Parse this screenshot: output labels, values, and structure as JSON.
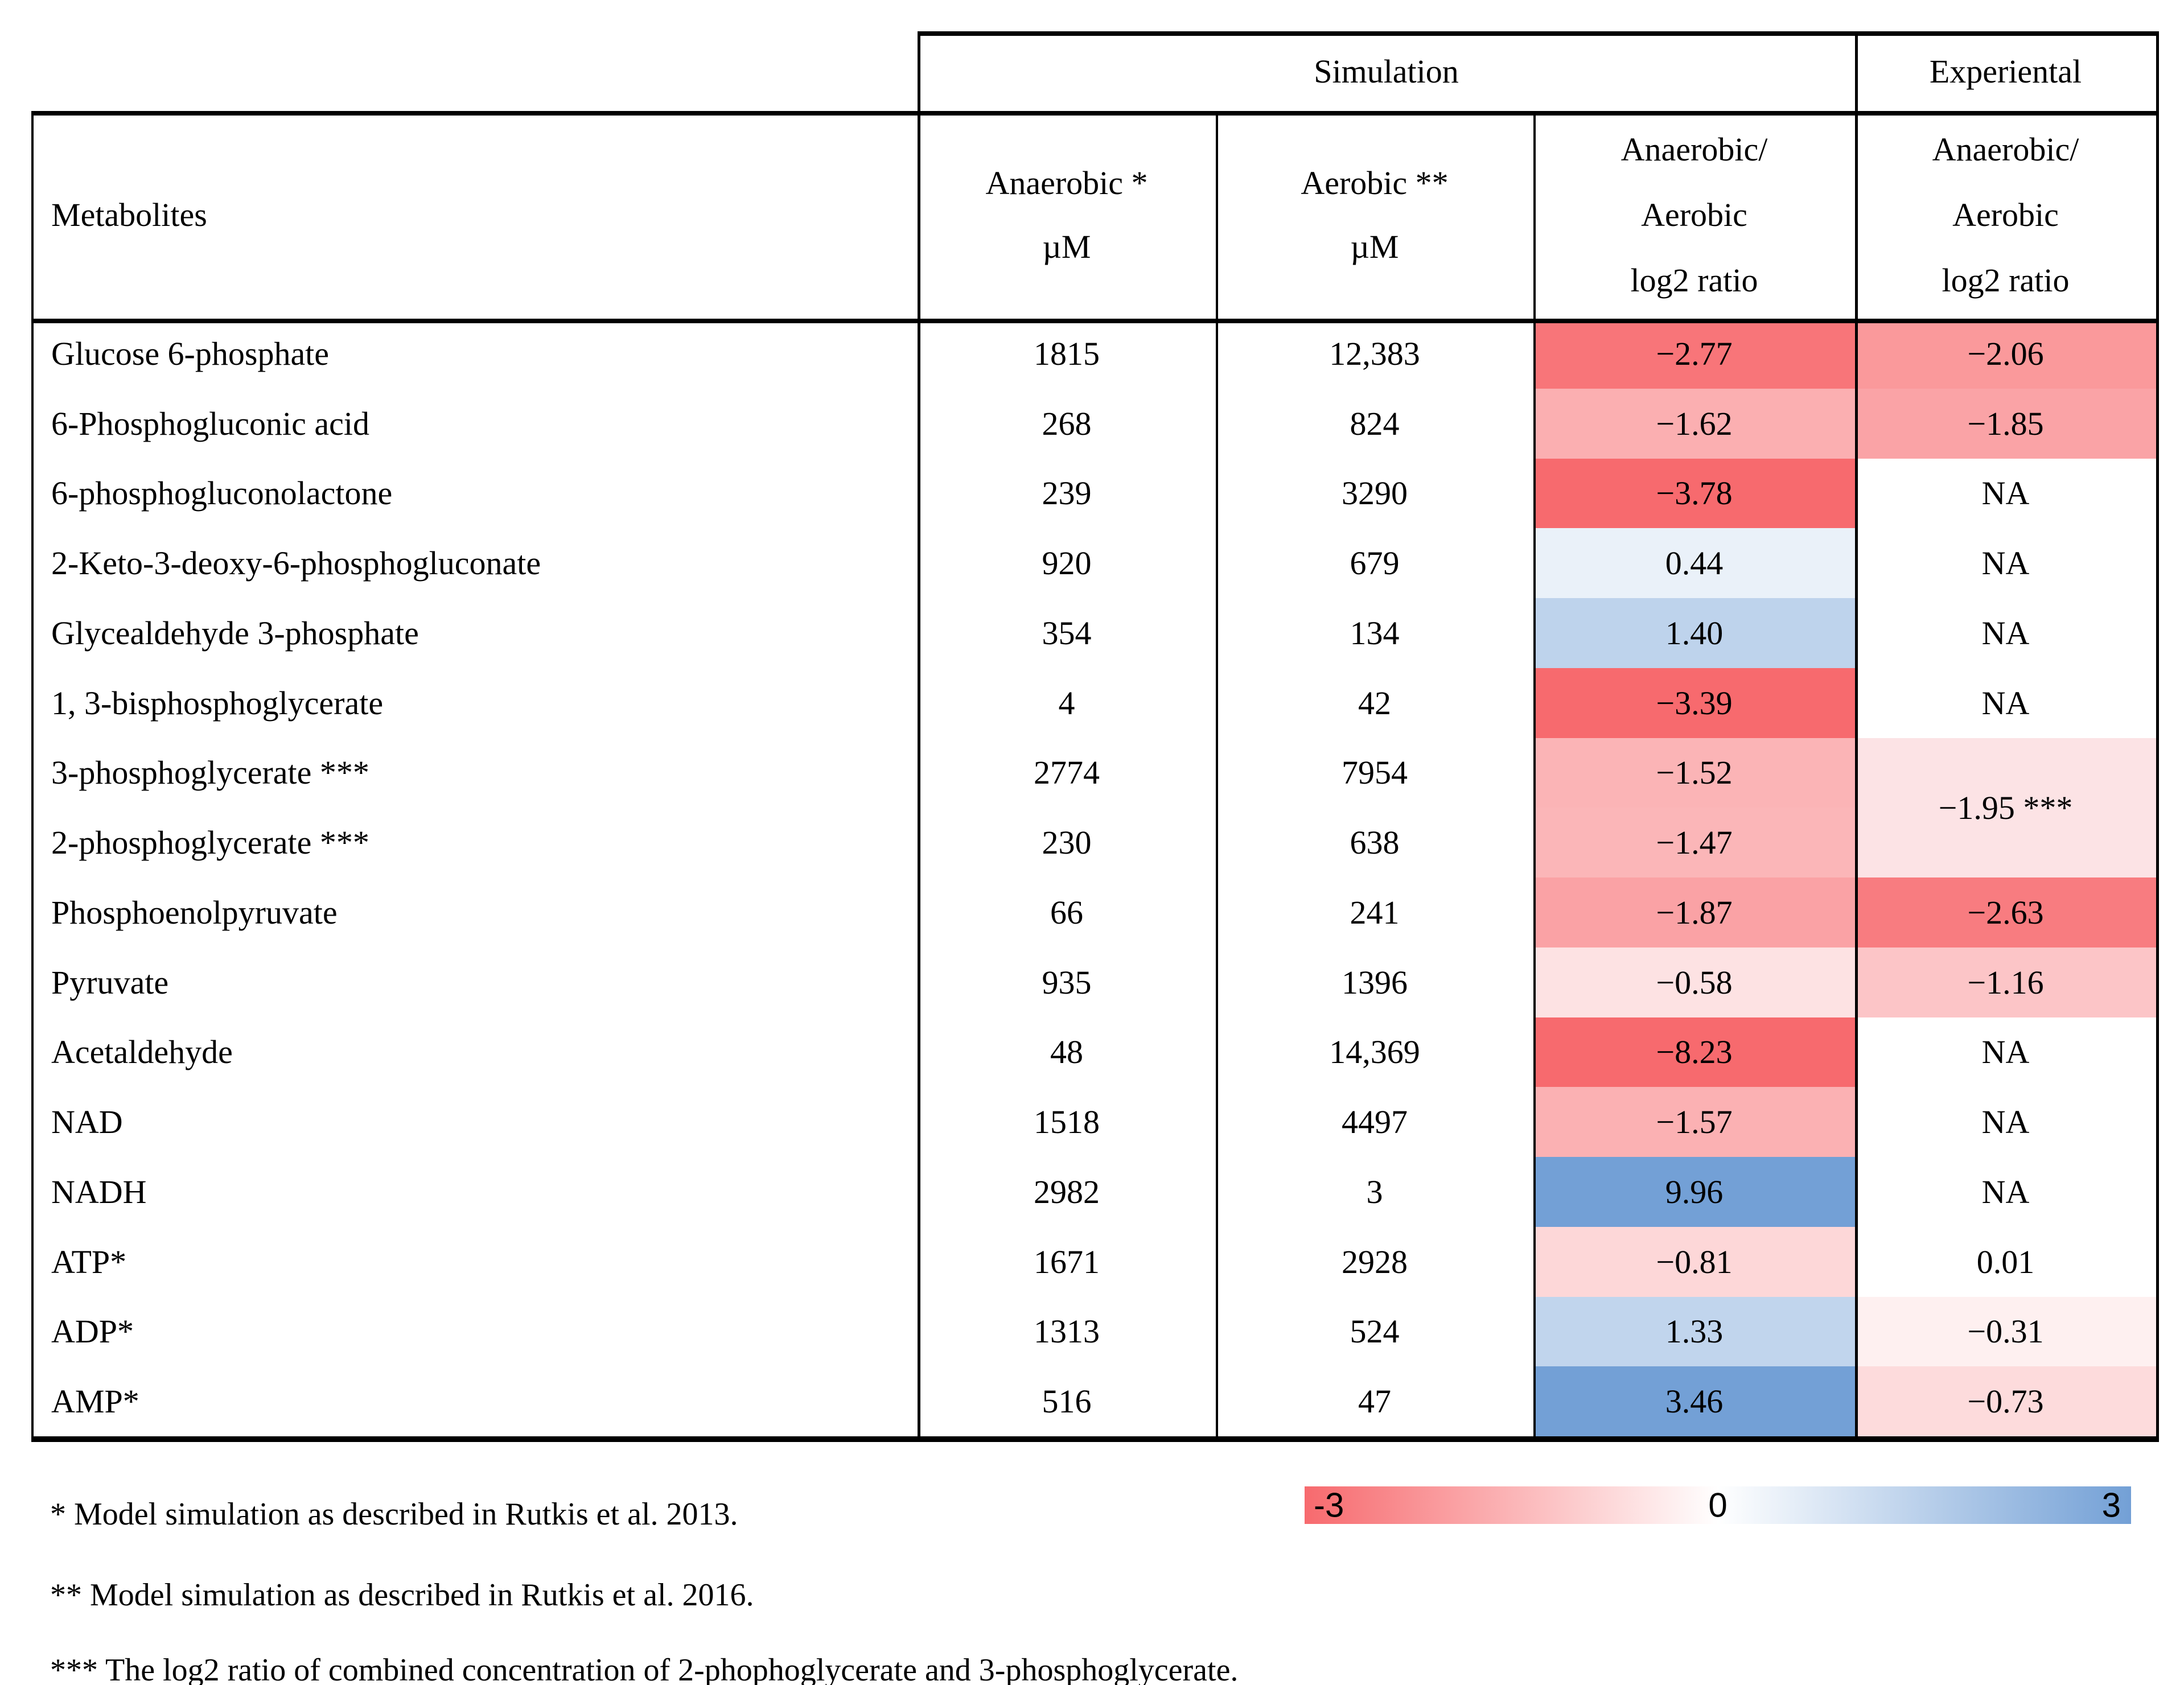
{
  "table": {
    "simulation_label": "Simulation",
    "experimental_label": "Experiental",
    "metabolites_label": "Metabolites",
    "anaerobic_header": [
      "Anaerobic *",
      "µM"
    ],
    "aerobic_header": [
      "Aerobic **",
      "µM"
    ],
    "ratio_header": [
      "Anaerobic/",
      "Aerobic",
      "log2 ratio"
    ]
  },
  "chart_data": {
    "type": "heatmap",
    "title": "Simulated and experimental metabolite concentrations, anaerobic vs aerobic",
    "columns": [
      "Metabolites",
      "Anaerobic * µM (Simulation)",
      "Aerobic ** µM (Simulation)",
      "Anaerobic/Aerobic log2 ratio (Simulation)",
      "Anaerobic/Aerobic log2 ratio (Experiental)"
    ],
    "rows": [
      {
        "name": "Glucose 6-phosphate",
        "anaerobic": "1815",
        "aerobic": "12,383",
        "sim_label": "−2.77",
        "sim_value": -2.77,
        "exp_label": "−2.06",
        "exp_value": -2.06
      },
      {
        "name": "6-Phosphogluconic acid",
        "anaerobic": "268",
        "aerobic": "824",
        "sim_label": "−1.62",
        "sim_value": -1.62,
        "exp_label": "−1.85",
        "exp_value": -1.85
      },
      {
        "name": "6-phosphogluconolactone",
        "anaerobic": "239",
        "aerobic": "3290",
        "sim_label": "−3.78",
        "sim_value": -3.78,
        "exp_label": "NA",
        "exp_value": null
      },
      {
        "name": "2-Keto-3-deoxy-6-phosphogluconate",
        "anaerobic": "920",
        "aerobic": "679",
        "sim_label": "0.44",
        "sim_value": 0.44,
        "exp_label": "NA",
        "exp_value": null
      },
      {
        "name": "Glycealdehyde 3-phosphate",
        "anaerobic": "354",
        "aerobic": "134",
        "sim_label": "1.40",
        "sim_value": 1.4,
        "exp_label": "NA",
        "exp_value": null
      },
      {
        "name": "1, 3-bisphosphoglycerate",
        "anaerobic": "4",
        "aerobic": "42",
        "sim_label": "−3.39",
        "sim_value": -3.39,
        "exp_label": "NA",
        "exp_value": null
      },
      {
        "name": "3-phosphoglycerate ***",
        "anaerobic": "2774",
        "aerobic": "7954",
        "sim_label": "−1.52",
        "sim_value": -1.52,
        "exp_label": "",
        "exp_value": null,
        "exp_merged": true
      },
      {
        "name": "2-phosphoglycerate ***",
        "anaerobic": "230",
        "aerobic": "638",
        "sim_label": "−1.47",
        "sim_value": -1.47,
        "exp_label": "",
        "exp_value": null,
        "exp_merged": true
      },
      {
        "name": "Phosphoenolpyruvate",
        "anaerobic": "66",
        "aerobic": "241",
        "sim_label": "−1.87",
        "sim_value": -1.87,
        "exp_label": "−2.63",
        "exp_value": -2.63
      },
      {
        "name": "Pyruvate",
        "anaerobic": "935",
        "aerobic": "1396",
        "sim_label": "−0.58",
        "sim_value": -0.58,
        "exp_label": "−1.16",
        "exp_value": -1.16
      },
      {
        "name": "Acetaldehyde",
        "anaerobic": "48",
        "aerobic": "14,369",
        "sim_label": "−8.23",
        "sim_value": -8.23,
        "exp_label": "NA",
        "exp_value": null
      },
      {
        "name": "NAD",
        "anaerobic": "1518",
        "aerobic": "4497",
        "sim_label": "−1.57",
        "sim_value": -1.57,
        "exp_label": "NA",
        "exp_value": null
      },
      {
        "name": "NADH",
        "anaerobic": "2982",
        "aerobic": "3",
        "sim_label": "9.96",
        "sim_value": 9.96,
        "exp_label": "NA",
        "exp_value": null
      },
      {
        "name": "ATP*",
        "anaerobic": "1671",
        "aerobic": "2928",
        "sim_label": "−0.81",
        "sim_value": -0.81,
        "exp_label": "0.01",
        "exp_value": 0.01
      },
      {
        "name": "ADP*",
        "anaerobic": "1313",
        "aerobic": "524",
        "sim_label": "1.33",
        "sim_value": 1.33,
        "exp_label": "−0.31",
        "exp_value": -0.31
      },
      {
        "name": "AMP*",
        "anaerobic": "516",
        "aerobic": "47",
        "sim_label": "3.46",
        "sim_value": 3.46,
        "exp_label": "−0.73",
        "exp_value": -0.73
      }
    ],
    "merged_experimental_cell": {
      "row_start": 6,
      "row_end": 7,
      "label": "−1.95 ***",
      "value": -1.95,
      "color": "#FCE3E5"
    },
    "colorscale": {
      "min": -3,
      "mid": 0,
      "max": 3,
      "min_color": "#F76A6E",
      "mid_color": "#FFFFFF",
      "max_color": "#73A0D6"
    }
  },
  "legend": {
    "min_label": "-3",
    "zero_label": "0",
    "max_label": "3"
  },
  "footnotes": [
    "* Model simulation as described in Rutkis et al. 2013.",
    "** Model simulation as described in Rutkis et al. 2016.",
    "*** The log2 ratio of combined concentration of 2-phophoglycerate and 3-phosphoglycerate."
  ]
}
